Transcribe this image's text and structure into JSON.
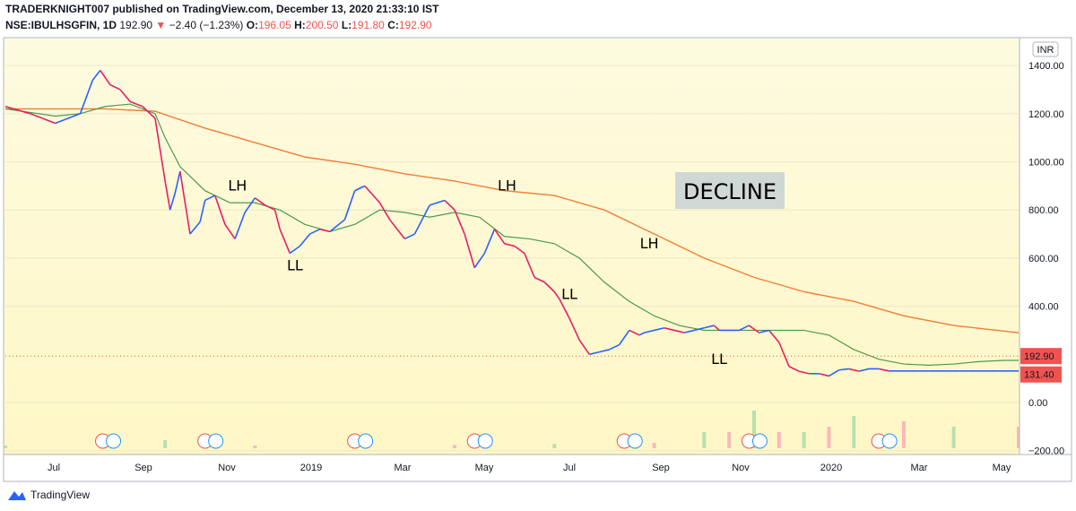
{
  "header": {
    "publisher_line": "TRADERKNIGHT007 published on TradingView.com, December 13, 2020 21:33:10 IST",
    "symbol": "NSE:IBULHSGFIN, 1D",
    "last": "192.90",
    "change": "−2.40 (−1.23%)",
    "o_label": "O:",
    "o_val": "196.05",
    "h_label": "H:",
    "h_val": "200.50",
    "l_label": "L:",
    "l_val": "191.80",
    "c_label": "C:",
    "c_val": "192.90"
  },
  "footer": {
    "brand": "TradingView"
  },
  "chart_data": {
    "type": "line",
    "currency": "INR",
    "yticks": [
      1400,
      1200,
      1000,
      800,
      600,
      400,
      0,
      -200
    ],
    "ytick_labels": [
      "1400.00",
      "1200.00",
      "1000.00",
      "800.00",
      "600.00",
      "400.00",
      "0.00",
      "−200.00"
    ],
    "xticks": [
      "Jul",
      "Sep",
      "Nov",
      "2019",
      "Mar",
      "May",
      "Jul",
      "Sep",
      "Nov",
      "2020",
      "Mar",
      "May"
    ],
    "price_labels": [
      {
        "text": "192.90",
        "value": 192.9,
        "color": "#ef5350"
      },
      {
        "text": "131.40",
        "value": 131.4,
        "color": "#ef5350"
      }
    ],
    "annotation_box": "DECLINE",
    "swing_labels": [
      {
        "text": "LH",
        "x": 93,
        "y": 880
      },
      {
        "text": "LL",
        "x": 116,
        "y": 550
      },
      {
        "text": "LH",
        "x": 201,
        "y": 880
      },
      {
        "text": "LL",
        "x": 226,
        "y": 430
      },
      {
        "text": "LH",
        "x": 258,
        "y": 640
      },
      {
        "text": "LL",
        "x": 286,
        "y": 160
      }
    ],
    "price": {
      "x": [
        0,
        10,
        20,
        30,
        35,
        38,
        42,
        46,
        50,
        55,
        60,
        64,
        66,
        68,
        70,
        74,
        78,
        80,
        84,
        88,
        92,
        96,
        100,
        104,
        108,
        110,
        114,
        118,
        122,
        126,
        130,
        136,
        140,
        144,
        150,
        154,
        160,
        164,
        170,
        176,
        180,
        184,
        188,
        192,
        196,
        200,
        204,
        208,
        212,
        216,
        220,
        222,
        226,
        230,
        234,
        238,
        242,
        246,
        250,
        254,
        256,
        260,
        264,
        268,
        272,
        276,
        280,
        284,
        286,
        290,
        294,
        298,
        302,
        306,
        310,
        314,
        318,
        322,
        326,
        330,
        334,
        338,
        342,
        346,
        350,
        354,
        358,
        362,
        366,
        370,
        374,
        378,
        382,
        386,
        390,
        394,
        398,
        402,
        406
      ],
      "y": [
        1230,
        1200,
        1160,
        1200,
        1340,
        1380,
        1320,
        1300,
        1250,
        1230,
        1180,
        920,
        800,
        870,
        960,
        700,
        750,
        840,
        860,
        740,
        680,
        790,
        850,
        820,
        800,
        720,
        620,
        650,
        700,
        720,
        710,
        760,
        880,
        900,
        830,
        760,
        680,
        700,
        820,
        840,
        800,
        700,
        560,
        620,
        720,
        660,
        650,
        620,
        520,
        500,
        460,
        430,
        350,
        260,
        200,
        210,
        220,
        240,
        300,
        280,
        290,
        300,
        310,
        300,
        290,
        300,
        310,
        320,
        300,
        300,
        300,
        320,
        290,
        300,
        250,
        150,
        130,
        120,
        120,
        110,
        135,
        140,
        130,
        140,
        140,
        131,
        131,
        131,
        131,
        131,
        131,
        131,
        131,
        131,
        131,
        131,
        131,
        131,
        131
      ]
    },
    "ma_short": {
      "x": [
        0,
        20,
        30,
        40,
        50,
        60,
        64,
        70,
        80,
        90,
        100,
        110,
        120,
        130,
        140,
        150,
        160,
        170,
        180,
        190,
        200,
        210,
        220,
        230,
        240,
        250,
        260,
        270,
        280,
        290,
        300,
        310,
        320,
        330,
        340,
        350,
        360,
        370,
        380,
        390,
        400,
        406
      ],
      "y": [
        1220,
        1190,
        1200,
        1230,
        1240,
        1200,
        1100,
        980,
        880,
        830,
        830,
        800,
        740,
        710,
        740,
        800,
        790,
        770,
        790,
        770,
        690,
        680,
        660,
        600,
        500,
        420,
        360,
        320,
        300,
        300,
        300,
        300,
        300,
        280,
        220,
        180,
        160,
        155,
        160,
        170,
        175,
        175
      ]
    },
    "ma_long": {
      "x": [
        0,
        20,
        40,
        60,
        80,
        100,
        120,
        140,
        160,
        180,
        200,
        220,
        240,
        260,
        280,
        300,
        320,
        340,
        360,
        380,
        406
      ],
      "y": [
        1220,
        1220,
        1220,
        1210,
        1140,
        1080,
        1020,
        990,
        950,
        920,
        880,
        860,
        800,
        700,
        600,
        520,
        460,
        420,
        360,
        320,
        290
      ]
    },
    "volume": {
      "x": [
        0,
        40,
        64,
        100,
        140,
        180,
        220,
        260,
        280,
        290,
        300,
        310,
        320,
        330,
        340,
        360,
        380,
        406
      ],
      "y": [
        0.05,
        0.06,
        0.15,
        0.05,
        0.08,
        0.06,
        0.08,
        0.1,
        0.3,
        0.3,
        0.7,
        0.3,
        0.3,
        0.4,
        0.6,
        0.5,
        0.4,
        0.4
      ]
    },
    "earnings_x": [
      39,
      80,
      140,
      188,
      248,
      298,
      350
    ]
  }
}
